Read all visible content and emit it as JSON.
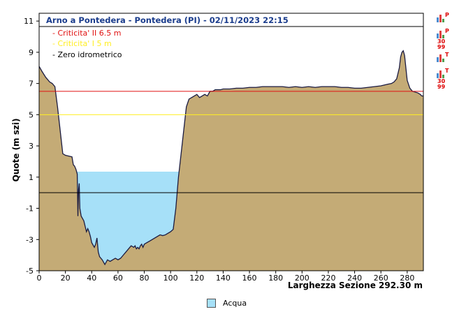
{
  "chart_data": {
    "type": "area",
    "title": "Arno a Pontedera - Pontedera (PI) - 02/11/2023 22:15",
    "ylabel": "Quote (m szi)",
    "xlabel": "Larghezza Sezione 292.30 m",
    "xlim": [
      0,
      292.3
    ],
    "ylim": [
      -5,
      11.5
    ],
    "x_ticks": [
      0,
      20,
      40,
      60,
      80,
      100,
      120,
      140,
      160,
      180,
      200,
      220,
      240,
      260,
      280
    ],
    "y_ticks": [
      -5,
      -3,
      -1,
      1,
      3,
      5,
      7,
      9,
      11
    ],
    "water_level": 1.35,
    "thresholds": [
      {
        "label": "- Criticita' II 6.5 m",
        "value": 6.5,
        "color": "#e01010"
      },
      {
        "label": "- Criticita' I 5 m",
        "value": 5,
        "color": "#ffee22"
      },
      {
        "label": "- Zero idrometrico",
        "value": 0,
        "color": "#000000"
      }
    ],
    "series": [
      {
        "name": "profilo",
        "x": [
          0,
          2,
          5,
          8,
          10,
          12,
          14,
          16,
          18,
          20,
          25,
          26,
          27,
          28,
          29,
          29.5,
          30,
          30.5,
          31,
          32,
          34,
          36,
          37,
          38,
          39,
          40,
          42,
          43,
          44,
          45,
          46,
          48,
          50,
          52,
          54,
          56,
          58,
          60,
          62,
          64,
          66,
          68,
          70,
          72,
          73,
          74,
          75,
          76,
          77,
          78,
          79,
          80,
          82,
          84,
          86,
          88,
          90,
          92,
          94,
          96,
          98,
          100,
          102,
          104,
          105,
          106,
          108,
          110,
          112,
          114,
          116,
          118,
          120,
          122,
          124,
          126,
          128,
          130,
          132,
          134,
          136,
          138,
          140,
          145,
          150,
          155,
          160,
          165,
          170,
          175,
          180,
          185,
          190,
          195,
          200,
          205,
          210,
          215,
          220,
          225,
          230,
          235,
          240,
          245,
          250,
          255,
          260,
          265,
          268,
          270,
          272,
          274,
          275,
          276,
          277,
          278,
          279,
          280,
          282,
          284,
          286,
          288,
          290,
          291,
          292.3
        ],
        "y": [
          8.1,
          7.8,
          7.4,
          7.1,
          7.0,
          6.8,
          5.5,
          4.0,
          2.5,
          2.4,
          2.3,
          1.8,
          1.7,
          1.5,
          1.2,
          -1.5,
          0.2,
          0.6,
          -1.0,
          -1.5,
          -1.8,
          -2.5,
          -2.3,
          -2.5,
          -2.8,
          -3.2,
          -3.5,
          -3.3,
          -2.9,
          -3.8,
          -4.1,
          -4.3,
          -4.6,
          -4.3,
          -4.4,
          -4.3,
          -4.2,
          -4.3,
          -4.2,
          -4.0,
          -3.8,
          -3.6,
          -3.4,
          -3.5,
          -3.4,
          -3.6,
          -3.5,
          -3.6,
          -3.4,
          -3.3,
          -3.5,
          -3.3,
          -3.2,
          -3.1,
          -3.0,
          -2.9,
          -2.8,
          -2.7,
          -2.75,
          -2.7,
          -2.6,
          -2.5,
          -2.35,
          -1.0,
          0.0,
          1.0,
          2.5,
          4.0,
          5.5,
          6.0,
          6.1,
          6.2,
          6.3,
          6.1,
          6.2,
          6.3,
          6.2,
          6.5,
          6.5,
          6.6,
          6.6,
          6.6,
          6.65,
          6.65,
          6.7,
          6.7,
          6.75,
          6.75,
          6.8,
          6.8,
          6.8,
          6.8,
          6.75,
          6.8,
          6.75,
          6.8,
          6.75,
          6.8,
          6.8,
          6.8,
          6.75,
          6.75,
          6.7,
          6.7,
          6.75,
          6.8,
          6.85,
          6.95,
          7.0,
          7.1,
          7.3,
          8.0,
          8.7,
          9.0,
          9.1,
          8.8,
          8.0,
          7.2,
          6.7,
          6.5,
          6.45,
          6.4,
          6.3,
          6.2,
          6.2
        ]
      },
      {
        "name": "Acqua",
        "color": "#a6e0f8"
      }
    ],
    "legend_position": "bottom",
    "colors": {
      "terrain": "#c4ab76",
      "water": "#a6e0f8",
      "title": "#1a3c8c"
    }
  },
  "side_icons": [
    {
      "letter": "P",
      "num": ""
    },
    {
      "letter": "P",
      "num": "30\n99"
    },
    {
      "letter": "T",
      "num": ""
    },
    {
      "letter": "T",
      "num": "30\n99"
    }
  ],
  "legend": {
    "water_label": "Acqua"
  }
}
